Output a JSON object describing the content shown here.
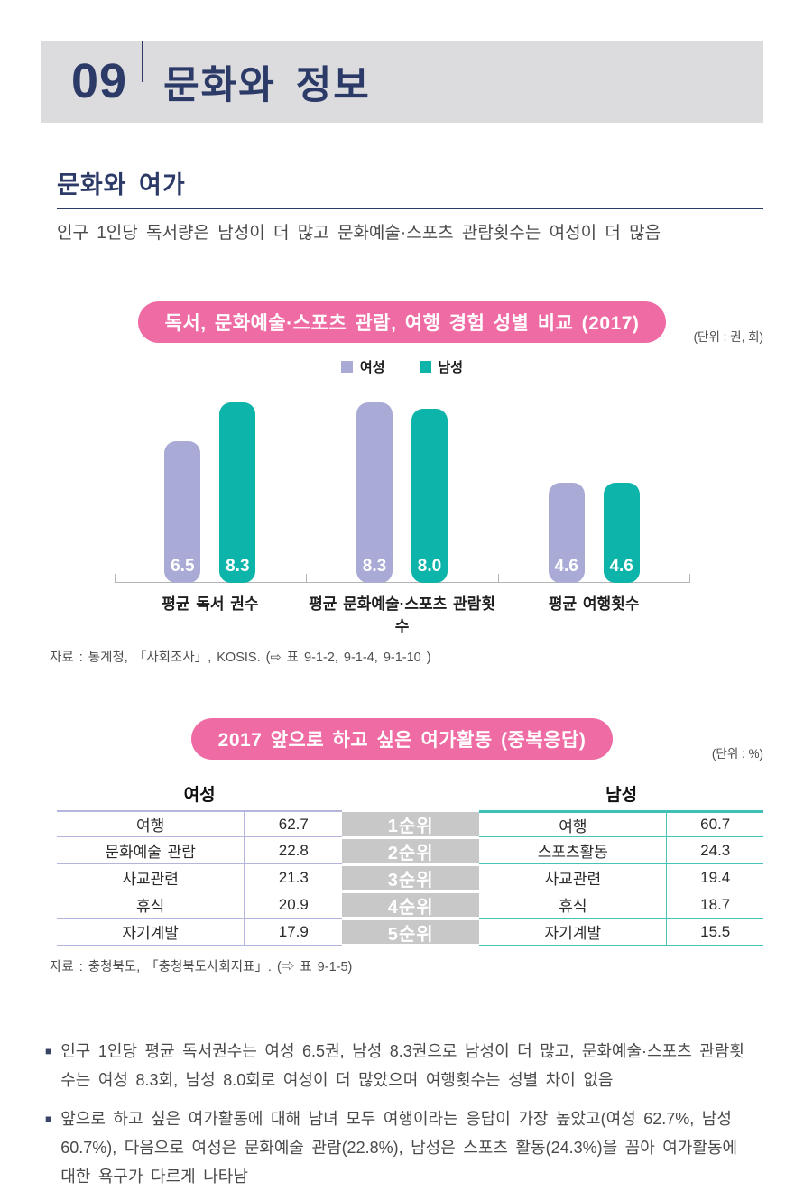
{
  "page": {
    "chapter_number": "09",
    "chapter_title": "문화와 정보",
    "section_title": "문화와 여가",
    "section_subtitle": "인구 1인당 독서량은 남성이 더 많고 문화예술·스포츠 관람횟수는 여성이 더 많음"
  },
  "colors": {
    "navy": "#2b3a67",
    "pink_pill": "#ef6ba3",
    "female": "#a9abd6",
    "male": "#0cb4aa",
    "rank_gray": "#c8c8c8",
    "header_band_gray": "#dcdcde"
  },
  "chart_data": [
    {
      "type": "bar",
      "title": "독서, 문화예술·스포츠 관람, 여행 경험 성별 비교 (2017)",
      "unit_label": "(단위 : 권, 회)",
      "categories": [
        "평균 독서 권수",
        "평균 문화예술·스포츠 관람횟수",
        "평균 여행횟수"
      ],
      "series": [
        {
          "key": "female",
          "name": "여성",
          "color": "#a9abd6",
          "values": [
            6.5,
            8.3,
            4.6
          ]
        },
        {
          "key": "male",
          "name": "남성",
          "color": "#0cb4aa",
          "values": [
            8.3,
            8.0,
            4.6
          ]
        }
      ],
      "ylim": [
        0,
        8.8
      ],
      "grid": false,
      "legend_position": "top",
      "value_labels": "inside-bottom, white",
      "source": "자료 : 통계청, 「사회조사」, KOSIS. (⇨ 표 9-1-2, 9-1-4, 9-1-10 )"
    },
    {
      "type": "table",
      "title": "2017 앞으로 하고 싶은 여가활동 (중복응답)",
      "unit_label": "(단위 : %)",
      "female_header": "여성",
      "male_header": "남성",
      "ranks": [
        "1순위",
        "2순위",
        "3순위",
        "4순위",
        "5순위"
      ],
      "female_rows": [
        {
          "label": "여행",
          "value": "62.7"
        },
        {
          "label": "문화예술 관람",
          "value": "22.8"
        },
        {
          "label": "사교관련",
          "value": "21.3"
        },
        {
          "label": "휴식",
          "value": "20.9"
        },
        {
          "label": "자기계발",
          "value": "17.9"
        }
      ],
      "male_rows": [
        {
          "label": "여행",
          "value": "60.7"
        },
        {
          "label": "스포츠활동",
          "value": "24.3"
        },
        {
          "label": "사교관련",
          "value": "19.4"
        },
        {
          "label": "휴식",
          "value": "18.7"
        },
        {
          "label": "자기계발",
          "value": "15.5"
        }
      ],
      "source": "자료 : 충청북도, 「충청북도사회지표」. (⇨ 표 9-1-5)"
    }
  ],
  "notes": {
    "bullet_glyph": "■",
    "items": [
      "인구 1인당 평균 독서권수는 여성 6.5권, 남성 8.3권으로 남성이 더 많고, 문화예술·스포츠 관람횟수는 여성 8.3회, 남성 8.0회로 여성이 더 많았으며 여행횟수는 성별 차이 없음",
      "앞으로 하고 싶은 여가활동에 대해 남녀 모두 여행이라는 응답이 가장 높았고(여성 62.7%, 남성 60.7%), 다음으로 여성은 문화예술 관람(22.8%), 남성은 스포츠 활동(24.3%)을 꼽아 여가활동에 대한 욕구가 다르게 나타남"
    ]
  }
}
